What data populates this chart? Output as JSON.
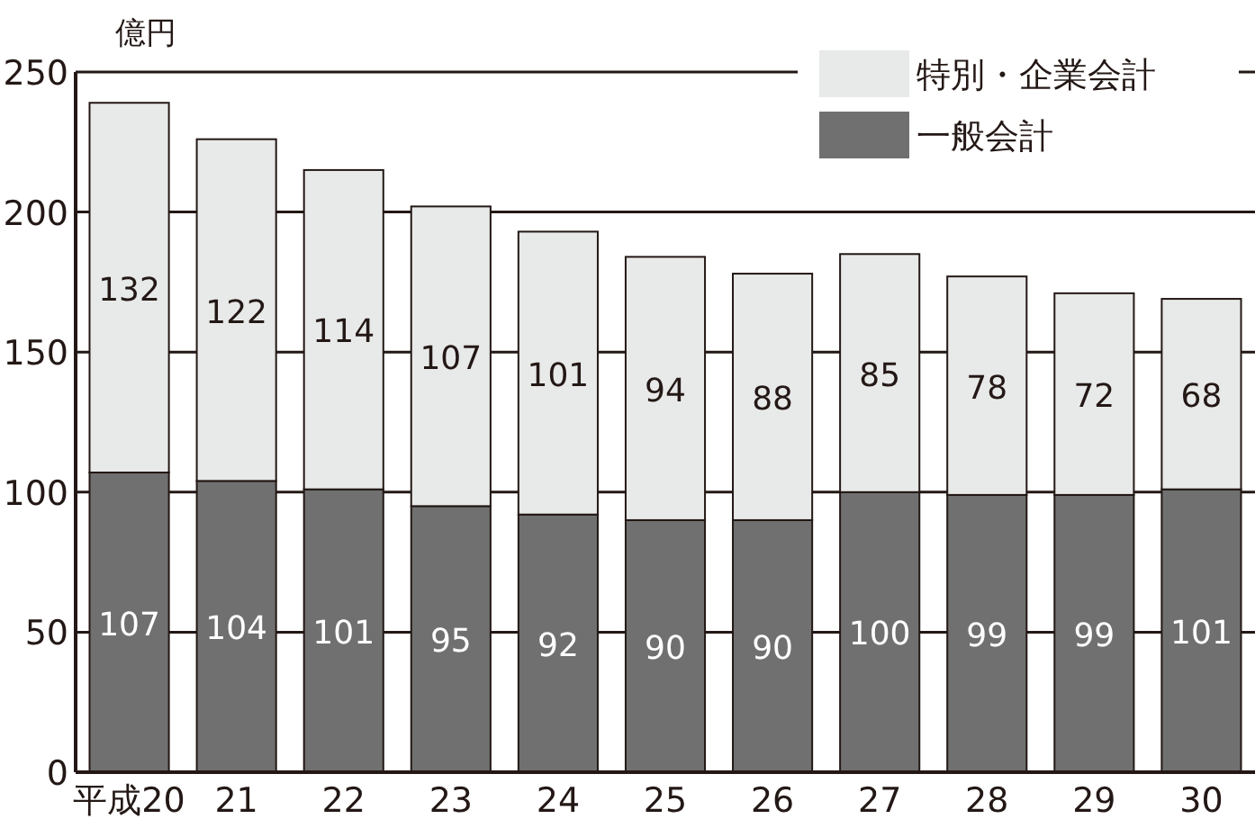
{
  "chart_data": {
    "type": "bar",
    "stacked": true,
    "ylabel": "億円",
    "categories": [
      "平成20",
      "21",
      "22",
      "23",
      "24",
      "25",
      "26",
      "27",
      "28",
      "29",
      "30"
    ],
    "series": [
      {
        "name": "一般会計",
        "color": "#707070",
        "values": [
          107,
          104,
          101,
          95,
          92,
          90,
          90,
          100,
          99,
          99,
          101
        ]
      },
      {
        "name": "特別・企業会計",
        "color": "#e8e9e9",
        "values": [
          132,
          122,
          114,
          107,
          101,
          94,
          88,
          85,
          78,
          72,
          68
        ]
      }
    ],
    "ylim": [
      0,
      250
    ],
    "yticks": [
      0,
      50,
      100,
      150,
      200,
      250
    ],
    "grid": "y",
    "legend": "top right",
    "data_labels": true
  }
}
